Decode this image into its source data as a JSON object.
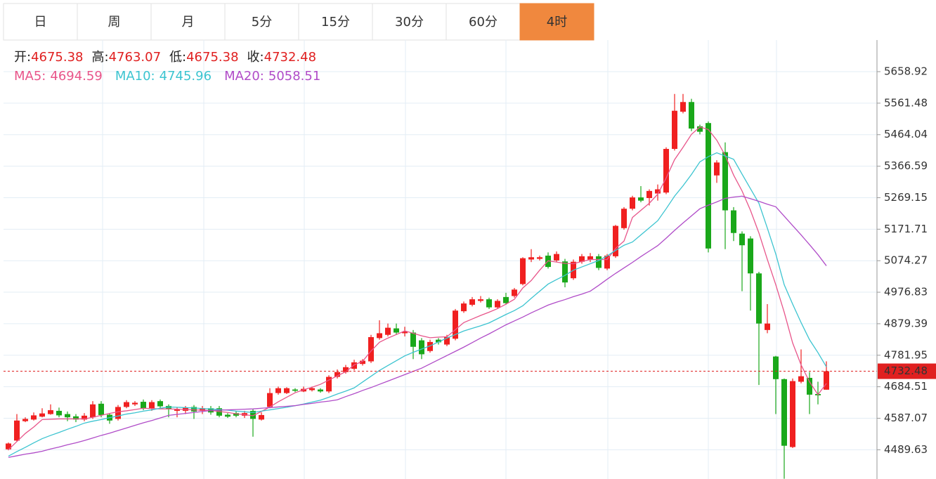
{
  "tabs": {
    "items": [
      "日",
      "周",
      "月",
      "5分",
      "15分",
      "30分",
      "60分",
      "4时"
    ],
    "active": 7
  },
  "chart_data": {
    "type": "candlestick",
    "ohlc_info": [
      {
        "label": "开:",
        "value": 4675.38
      },
      {
        "label": "高:",
        "value": 4763.07
      },
      {
        "label": "低:",
        "value": 4675.38
      },
      {
        "label": "收:",
        "value": 4732.48
      }
    ],
    "up_color": "#f02020",
    "down_color": "#1aa81a",
    "ylim": [
      4399.2,
      5756.7
    ],
    "yticks": [
      5658.92,
      5561.48,
      5464.04,
      5366.59,
      5269.15,
      5171.71,
      5074.27,
      4976.83,
      4879.39,
      4781.95,
      4684.51,
      4587.07,
      4489.63
    ],
    "grid": true,
    "open": [
      4491,
      4518,
      4578,
      4583,
      4592,
      4600,
      4610,
      4600,
      4593,
      4583,
      4590,
      4632,
      4598,
      4585,
      4622,
      4630,
      4638,
      4618,
      4640,
      4625,
      4610,
      4610,
      4622,
      4610,
      4618,
      4618,
      4598,
      4603,
      4595,
      4610,
      4583,
      4622,
      4665,
      4665,
      4676,
      4670,
      4674,
      4676,
      4670,
      4715,
      4730,
      4740,
      4755,
      4763,
      4835,
      4845,
      4865,
      4850,
      4852,
      4828,
      4795,
      4830,
      4815,
      4833,
      4918,
      4938,
      4950,
      4955,
      4930,
      4962,
      4965,
      5002,
      5078,
      5080,
      5090,
      5075,
      5072,
      5020,
      5071,
      5078,
      5088,
      5050,
      5088,
      5175,
      5235,
      5270,
      5268,
      5282,
      5285,
      5420,
      5535,
      5565,
      5490,
      5500,
      5338,
      5410,
      5230,
      5158,
      5143,
      5035,
      4860,
      4778,
      4708,
      4498,
      4700,
      4712,
      4662,
      4675.38
    ],
    "high": [
      4512,
      4600,
      4590,
      4605,
      4618,
      4630,
      4620,
      4608,
      4600,
      4603,
      4640,
      4640,
      4602,
      4628,
      4643,
      4640,
      4645,
      4643,
      4645,
      4630,
      4620,
      4625,
      4628,
      4625,
      4625,
      4625,
      4603,
      4610,
      4610,
      4615,
      4605,
      4680,
      4685,
      4683,
      4680,
      4685,
      4685,
      4680,
      4720,
      4738,
      4752,
      4768,
      4770,
      4845,
      4890,
      4880,
      4880,
      4870,
      4860,
      4835,
      4830,
      4835,
      4845,
      4925,
      4948,
      4962,
      4965,
      4960,
      4955,
      4975,
      4990,
      5085,
      5110,
      5090,
      5100,
      5103,
      5080,
      5078,
      5095,
      5098,
      5095,
      5095,
      5185,
      5240,
      5275,
      5305,
      5295,
      5310,
      5425,
      5590,
      5590,
      5575,
      5495,
      5505,
      5385,
      5440,
      5240,
      5165,
      5150,
      5040,
      4940,
      4780,
      4710,
      4710,
      4800,
      4730,
      4700,
      4763.07
    ],
    "low": [
      4488,
      4515,
      4575,
      4580,
      4590,
      4598,
      4590,
      4578,
      4575,
      4578,
      4585,
      4590,
      4570,
      4580,
      4618,
      4625,
      4612,
      4610,
      4615,
      4590,
      4590,
      4600,
      4585,
      4600,
      4598,
      4590,
      4588,
      4590,
      4588,
      4530,
      4580,
      4618,
      4660,
      4662,
      4668,
      4668,
      4670,
      4666,
      4665,
      4710,
      4725,
      4735,
      4750,
      4758,
      4830,
      4840,
      4845,
      4840,
      4770,
      4770,
      4790,
      4815,
      4810,
      4828,
      4913,
      4933,
      4945,
      4925,
      4925,
      4938,
      4960,
      4998,
      5070,
      5075,
      5050,
      5070,
      4992,
      5015,
      5065,
      5070,
      5045,
      5045,
      5083,
      5170,
      5230,
      5255,
      5245,
      5260,
      5280,
      5415,
      5530,
      5475,
      5465,
      5100,
      5315,
      5110,
      5135,
      4980,
      4920,
      4690,
      4850,
      4600,
      4400,
      4495,
      4695,
      4600,
      4630,
      4675.38
    ],
    "close": [
      4509,
      4580,
      4585,
      4596,
      4602,
      4612,
      4596,
      4590,
      4583,
      4595,
      4630,
      4597,
      4580,
      4622,
      4637,
      4635,
      4618,
      4637,
      4624,
      4615,
      4614,
      4620,
      4608,
      4618,
      4605,
      4595,
      4592,
      4595,
      4603,
      4585,
      4597,
      4665,
      4680,
      4680,
      4672,
      4678,
      4680,
      4670,
      4715,
      4730,
      4745,
      4760,
      4765,
      4838,
      4850,
      4867,
      4852,
      4855,
      4808,
      4785,
      4823,
      4822,
      4838,
      4920,
      4942,
      4955,
      4955,
      4930,
      4950,
      4943,
      4985,
      5082,
      5085,
      5085,
      5055,
      5095,
      5007,
      5071,
      5088,
      5088,
      5052,
      5090,
      5182,
      5235,
      5270,
      5260,
      5290,
      5295,
      5420,
      5538,
      5565,
      5483,
      5473,
      5112,
      5378,
      5230,
      5160,
      5122,
      5035,
      4880,
      4880,
      4708,
      4502,
      4702,
      4717,
      4660,
      4658,
      4732.48
    ],
    "series": [
      {
        "name": "MA5:",
        "color": "#e8558a",
        "current": 4694.59,
        "values": [
          4490,
          4515,
          4540,
          4560,
          4583,
          4584,
          4585,
          4585,
          4585,
          4585,
          4590,
          4596,
          4602,
          4607,
          4610,
          4614,
          4618,
          4617,
          4616,
          4616,
          4615,
          4614,
          4613,
          4612,
          4611,
          4608,
          4605,
          4601,
          4598,
          4595,
          4608,
          4622,
          4638,
          4652,
          4666,
          4675,
          4683,
          4692,
          4705,
          4718,
          4731,
          4752,
          4763,
          4795,
          4822,
          4835,
          4846,
          4857,
          4850,
          4842,
          4836,
          4838,
          4839,
          4861,
          4883,
          4894,
          4905,
          4915,
          4926,
          4940,
          4955,
          4990,
          5013,
          5045,
          5074,
          5070,
          5066,
          5065,
          5072,
          5078,
          5078,
          5078,
          5112,
          5135,
          5208,
          5230,
          5252,
          5280,
          5330,
          5387,
          5425,
          5465,
          5488,
          5480,
          5447,
          5400,
          5339,
          5290,
          5230,
          5160,
          5078,
          5000,
          4915,
          4820,
          4752,
          4700,
          4660,
          4694.59
        ]
      },
      {
        "name": "MA10:",
        "color": "#3cc4d0",
        "current": 4745.96,
        "values": [
          4470,
          4484,
          4497,
          4511,
          4524,
          4534,
          4543,
          4553,
          4562,
          4572,
          4578,
          4583,
          4589,
          4594,
          4600,
          4604,
          4609,
          4613,
          4618,
          4622,
          4621,
          4620,
          4619,
          4617,
          4616,
          4614,
          4612,
          4609,
          4607,
          4605,
          4609,
          4613,
          4617,
          4621,
          4626,
          4631,
          4637,
          4643,
          4652,
          4662,
          4671,
          4681,
          4699,
          4717,
          4735,
          4750,
          4765,
          4780,
          4791,
          4801,
          4811,
          4823,
          4835,
          4846,
          4857,
          4865,
          4873,
          4882,
          4895,
          4908,
          4920,
          4935,
          4958,
          4980,
          5002,
          5016,
          5029,
          5045,
          5055,
          5065,
          5075,
          5089,
          5106,
          5122,
          5132,
          5154,
          5176,
          5198,
          5235,
          5274,
          5306,
          5341,
          5380,
          5396,
          5408,
          5398,
          5388,
          5342,
          5297,
          5252,
          5175,
          5095,
          5000,
          4940,
          4883,
          4830,
          4790,
          4745.96
        ]
      },
      {
        "name": "MA20:",
        "color": "#b04cc8",
        "current": 5058.51,
        "values": [
          4466,
          4471,
          4476,
          4480,
          4485,
          4492,
          4498,
          4505,
          4511,
          4518,
          4526,
          4534,
          4541,
          4549,
          4557,
          4565,
          4573,
          4580,
          4588,
          4596,
          4599,
          4602,
          4605,
          4608,
          4611,
          4612,
          4613,
          4614,
          4615,
          4616,
          4618,
          4620,
          4622,
          4624,
          4626,
          4630,
          4633,
          4637,
          4640,
          4644,
          4654,
          4663,
          4673,
          4682,
          4692,
          4702,
          4712,
          4722,
          4732,
          4742,
          4755,
          4768,
          4781,
          4794,
          4807,
          4821,
          4835,
          4848,
          4862,
          4876,
          4888,
          4900,
          4913,
          4925,
          4937,
          4946,
          4954,
          4963,
          4971,
          4980,
          4998,
          5017,
          5035,
          5052,
          5069,
          5087,
          5104,
          5121,
          5144,
          5168,
          5191,
          5213,
          5235,
          5246,
          5256,
          5267,
          5271,
          5274,
          5266,
          5258,
          5249,
          5241,
          5212,
          5183,
          5154,
          5124,
          5093,
          5058.51
        ]
      }
    ]
  }
}
